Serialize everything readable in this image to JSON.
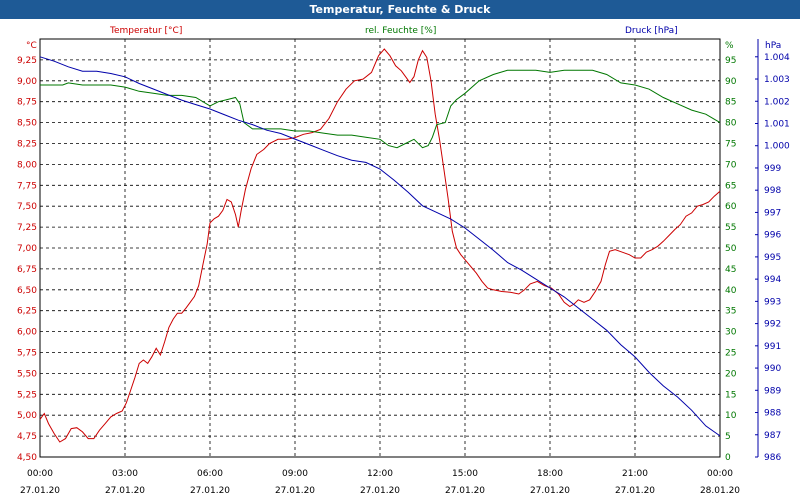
{
  "window": {
    "title": "Temperatur, Feuchte & Druck"
  },
  "chart_data": {
    "type": "line",
    "title": "Temperatur, Feuchte & Druck",
    "x": [
      "00:00",
      "03:00",
      "06:00",
      "09:00",
      "12:00",
      "15:00",
      "18:00",
      "21:00",
      "00:00"
    ],
    "x_dates": [
      "27.01.20",
      "27.01.20",
      "27.01.20",
      "27.01.20",
      "27.01.20",
      "27.01.20",
      "27.01.20",
      "27.01.20",
      "28.01.20"
    ],
    "x_range_hours": [
      0,
      24
    ],
    "grid": true,
    "axes": {
      "temperature": {
        "unit": "°C",
        "label": "Temperatur [°C]",
        "ylim": [
          4.5,
          9.5
        ],
        "color": "#cc0000",
        "ticks": [
          "9,25",
          "9,00",
          "8,75",
          "8,50",
          "8,25",
          "8,00",
          "7,75",
          "7,50",
          "7,25",
          "7,00",
          "6,75",
          "6,50",
          "6,25",
          "6,00",
          "5,75",
          "5,50",
          "5,25",
          "5,00",
          "4,75",
          "4,50"
        ]
      },
      "humidity": {
        "unit": "%",
        "label": "rel. Feuchte [%]",
        "ylim": [
          0,
          100
        ],
        "color": "#007700",
        "ticks": [
          "95",
          "90",
          "85",
          "80",
          "75",
          "70",
          "65",
          "60",
          "55",
          "50",
          "45",
          "40",
          "35",
          "30",
          "25",
          "20",
          "15",
          "10",
          "5",
          "0"
        ]
      },
      "pressure": {
        "unit": "hPa",
        "label": "Druck [hPa]",
        "ylim": [
          986,
          1004.8
        ],
        "color": "#0000aa",
        "ticks": [
          "1.004",
          "1.003",
          "1.002",
          "1.001",
          "1.000",
          "999",
          "998",
          "997",
          "996",
          "995",
          "994",
          "993",
          "992",
          "991",
          "990",
          "989",
          "988",
          "987",
          "986"
        ]
      }
    },
    "series": [
      {
        "name": "Temperatur [°C]",
        "axis": "temperature",
        "color": "#cc0000",
        "points": [
          [
            0,
            4.95
          ],
          [
            0.15,
            5.02
          ],
          [
            0.3,
            4.9
          ],
          [
            0.5,
            4.78
          ],
          [
            0.7,
            4.68
          ],
          [
            0.9,
            4.72
          ],
          [
            1.1,
            4.84
          ],
          [
            1.3,
            4.85
          ],
          [
            1.5,
            4.8
          ],
          [
            1.7,
            4.72
          ],
          [
            1.9,
            4.72
          ],
          [
            2.1,
            4.82
          ],
          [
            2.3,
            4.9
          ],
          [
            2.5,
            4.98
          ],
          [
            2.7,
            5.02
          ],
          [
            2.9,
            5.05
          ],
          [
            3.05,
            5.15
          ],
          [
            3.2,
            5.3
          ],
          [
            3.35,
            5.45
          ],
          [
            3.5,
            5.62
          ],
          [
            3.65,
            5.66
          ],
          [
            3.8,
            5.62
          ],
          [
            3.95,
            5.7
          ],
          [
            4.1,
            5.8
          ],
          [
            4.25,
            5.72
          ],
          [
            4.4,
            5.88
          ],
          [
            4.55,
            6.05
          ],
          [
            4.7,
            6.15
          ],
          [
            4.85,
            6.22
          ],
          [
            5.0,
            6.22
          ],
          [
            5.15,
            6.28
          ],
          [
            5.3,
            6.35
          ],
          [
            5.45,
            6.42
          ],
          [
            5.6,
            6.55
          ],
          [
            5.75,
            6.8
          ],
          [
            5.9,
            7.05
          ],
          [
            6.0,
            7.3
          ],
          [
            6.15,
            7.35
          ],
          [
            6.3,
            7.38
          ],
          [
            6.45,
            7.45
          ],
          [
            6.6,
            7.58
          ],
          [
            6.75,
            7.55
          ],
          [
            6.9,
            7.4
          ],
          [
            7.0,
            7.25
          ],
          [
            7.1,
            7.45
          ],
          [
            7.25,
            7.7
          ],
          [
            7.45,
            7.95
          ],
          [
            7.65,
            8.12
          ],
          [
            7.9,
            8.18
          ],
          [
            8.1,
            8.25
          ],
          [
            8.4,
            8.3
          ],
          [
            8.7,
            8.3
          ],
          [
            9.0,
            8.32
          ],
          [
            9.3,
            8.36
          ],
          [
            9.6,
            8.38
          ],
          [
            9.9,
            8.42
          ],
          [
            10.2,
            8.55
          ],
          [
            10.5,
            8.75
          ],
          [
            10.8,
            8.9
          ],
          [
            11.1,
            9.0
          ],
          [
            11.4,
            9.02
          ],
          [
            11.7,
            9.1
          ],
          [
            11.95,
            9.3
          ],
          [
            12.15,
            9.38
          ],
          [
            12.35,
            9.3
          ],
          [
            12.55,
            9.18
          ],
          [
            12.75,
            9.12
          ],
          [
            12.9,
            9.05
          ],
          [
            13.05,
            8.98
          ],
          [
            13.2,
            9.05
          ],
          [
            13.35,
            9.25
          ],
          [
            13.5,
            9.36
          ],
          [
            13.65,
            9.28
          ],
          [
            13.8,
            9.0
          ],
          [
            13.95,
            8.6
          ],
          [
            14.1,
            8.3
          ],
          [
            14.25,
            7.95
          ],
          [
            14.4,
            7.6
          ],
          [
            14.55,
            7.2
          ],
          [
            14.7,
            7.0
          ],
          [
            14.85,
            6.92
          ],
          [
            15.0,
            6.86
          ],
          [
            15.2,
            6.78
          ],
          [
            15.4,
            6.7
          ],
          [
            15.6,
            6.6
          ],
          [
            15.8,
            6.52
          ],
          [
            16.0,
            6.5
          ],
          [
            16.3,
            6.48
          ],
          [
            16.6,
            6.47
          ],
          [
            16.9,
            6.45
          ],
          [
            17.1,
            6.5
          ],
          [
            17.3,
            6.57
          ],
          [
            17.55,
            6.6
          ],
          [
            17.8,
            6.55
          ],
          [
            18.05,
            6.52
          ],
          [
            18.3,
            6.45
          ],
          [
            18.5,
            6.35
          ],
          [
            18.7,
            6.3
          ],
          [
            18.85,
            6.33
          ],
          [
            19.0,
            6.38
          ],
          [
            19.2,
            6.35
          ],
          [
            19.4,
            6.38
          ],
          [
            19.6,
            6.48
          ],
          [
            19.8,
            6.6
          ],
          [
            19.95,
            6.8
          ],
          [
            20.1,
            6.96
          ],
          [
            20.3,
            6.98
          ],
          [
            20.55,
            6.95
          ],
          [
            20.8,
            6.92
          ],
          [
            21.0,
            6.88
          ],
          [
            21.2,
            6.88
          ],
          [
            21.4,
            6.95
          ],
          [
            21.6,
            6.98
          ],
          [
            21.8,
            7.02
          ],
          [
            22.0,
            7.08
          ],
          [
            22.2,
            7.15
          ],
          [
            22.4,
            7.22
          ],
          [
            22.6,
            7.28
          ],
          [
            22.8,
            7.38
          ],
          [
            23.0,
            7.42
          ],
          [
            23.2,
            7.5
          ],
          [
            23.4,
            7.52
          ],
          [
            23.6,
            7.55
          ],
          [
            23.8,
            7.62
          ],
          [
            24.0,
            7.68
          ]
        ]
      },
      {
        "name": "rel. Feuchte [%]",
        "axis": "humidity",
        "color": "#007700",
        "points": [
          [
            0,
            89
          ],
          [
            0.5,
            89
          ],
          [
            0.8,
            89
          ],
          [
            1.0,
            89.5
          ],
          [
            1.5,
            89
          ],
          [
            2.0,
            89
          ],
          [
            2.5,
            89
          ],
          [
            3.0,
            88.5
          ],
          [
            3.5,
            87.5
          ],
          [
            4.0,
            87
          ],
          [
            4.5,
            86.5
          ],
          [
            5.0,
            86.5
          ],
          [
            5.5,
            86
          ],
          [
            6.0,
            84
          ],
          [
            6.3,
            85
          ],
          [
            6.6,
            85.5
          ],
          [
            6.9,
            86
          ],
          [
            7.05,
            84.5
          ],
          [
            7.2,
            80
          ],
          [
            7.5,
            78.5
          ],
          [
            8.0,
            78.5
          ],
          [
            8.5,
            78.5
          ],
          [
            9.0,
            78
          ],
          [
            9.5,
            78
          ],
          [
            10.0,
            77.5
          ],
          [
            10.5,
            77
          ],
          [
            11.0,
            77
          ],
          [
            11.5,
            76.5
          ],
          [
            12.0,
            76
          ],
          [
            12.3,
            74.5
          ],
          [
            12.6,
            74
          ],
          [
            12.9,
            75
          ],
          [
            13.2,
            76
          ],
          [
            13.5,
            74
          ],
          [
            13.7,
            74.5
          ],
          [
            13.85,
            76.5
          ],
          [
            14.0,
            79.5
          ],
          [
            14.3,
            80
          ],
          [
            14.5,
            84
          ],
          [
            14.7,
            85.5
          ],
          [
            15.0,
            87
          ],
          [
            15.5,
            90
          ],
          [
            16.0,
            91.5
          ],
          [
            16.5,
            92.5
          ],
          [
            17.0,
            92.5
          ],
          [
            17.5,
            92.5
          ],
          [
            18.0,
            92
          ],
          [
            18.5,
            92.5
          ],
          [
            19.0,
            92.5
          ],
          [
            19.5,
            92.5
          ],
          [
            20.0,
            91.5
          ],
          [
            20.5,
            89.5
          ],
          [
            21.0,
            89
          ],
          [
            21.5,
            88
          ],
          [
            22.0,
            86
          ],
          [
            22.5,
            84.5
          ],
          [
            23.0,
            83
          ],
          [
            23.5,
            82
          ],
          [
            24.0,
            80
          ]
        ]
      },
      {
        "name": "Druck [hPa]",
        "axis": "pressure",
        "color": "#0000aa",
        "points": [
          [
            0,
            1004.0
          ],
          [
            0.5,
            1003.8
          ],
          [
            1.0,
            1003.55
          ],
          [
            1.5,
            1003.35
          ],
          [
            2.0,
            1003.35
          ],
          [
            2.5,
            1003.25
          ],
          [
            3.0,
            1003.1
          ],
          [
            3.5,
            1002.8
          ],
          [
            4.0,
            1002.55
          ],
          [
            4.5,
            1002.3
          ],
          [
            5.0,
            1002.05
          ],
          [
            5.5,
            1001.85
          ],
          [
            6.0,
            1001.65
          ],
          [
            6.5,
            1001.4
          ],
          [
            7.0,
            1001.15
          ],
          [
            7.5,
            1000.95
          ],
          [
            8.0,
            1000.7
          ],
          [
            8.5,
            1000.55
          ],
          [
            9.0,
            1000.3
          ],
          [
            9.5,
            1000.05
          ],
          [
            10.0,
            999.8
          ],
          [
            10.5,
            999.55
          ],
          [
            11.0,
            999.35
          ],
          [
            11.5,
            999.25
          ],
          [
            12.0,
            998.95
          ],
          [
            12.5,
            998.45
          ],
          [
            13.0,
            997.9
          ],
          [
            13.5,
            997.3
          ],
          [
            14.0,
            997.0
          ],
          [
            14.5,
            996.7
          ],
          [
            15.0,
            996.3
          ],
          [
            15.5,
            995.8
          ],
          [
            16.0,
            995.3
          ],
          [
            16.5,
            994.75
          ],
          [
            17.0,
            994.4
          ],
          [
            17.5,
            994.0
          ],
          [
            18.0,
            993.6
          ],
          [
            18.5,
            993.2
          ],
          [
            19.0,
            992.7
          ],
          [
            19.5,
            992.2
          ],
          [
            20.0,
            991.7
          ],
          [
            20.5,
            991.05
          ],
          [
            21.0,
            990.5
          ],
          [
            21.5,
            989.8
          ],
          [
            22.0,
            989.2
          ],
          [
            22.5,
            988.7
          ],
          [
            23.0,
            988.1
          ],
          [
            23.5,
            987.4
          ],
          [
            24.0,
            986.95
          ]
        ]
      }
    ]
  }
}
